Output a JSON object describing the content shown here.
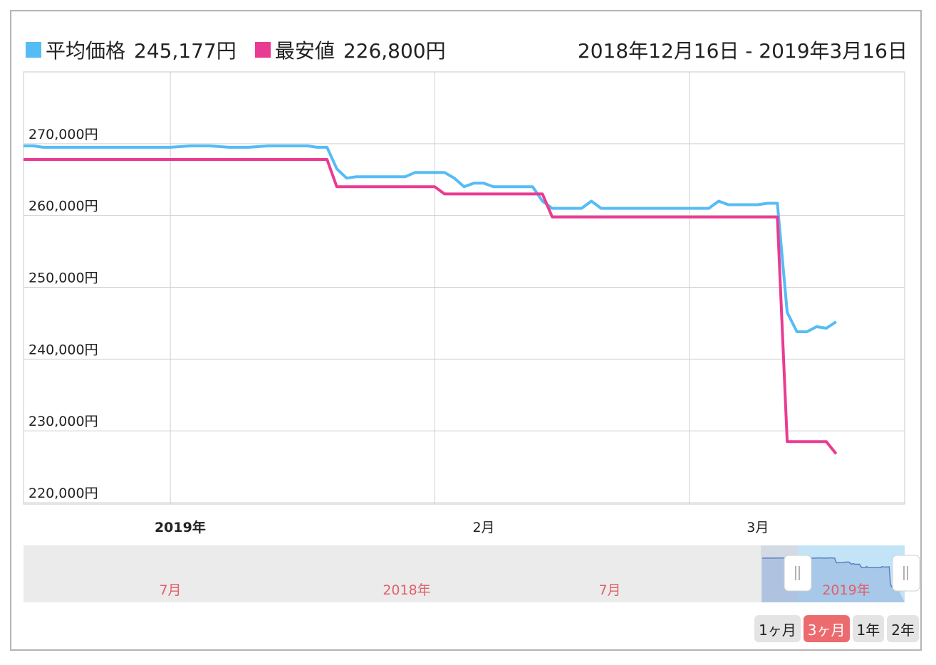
{
  "legend": {
    "avg": {
      "label": "平均価格",
      "value": "245,177円",
      "color": "#56bcf5"
    },
    "min": {
      "label": "最安値",
      "value": "226,800円",
      "color": "#ea3b92"
    }
  },
  "date_range": "2018年12月16日 - 2019年3月16日",
  "chart_data": {
    "type": "line",
    "y_tick_labels": [
      "270,000円",
      "260,000円",
      "250,000円",
      "240,000円",
      "230,000円",
      "220,000円"
    ],
    "y_ticks": [
      270000,
      260000,
      250000,
      240000,
      230000,
      220000
    ],
    "ylim": [
      219800,
      280000
    ],
    "xlim": [
      "2018-12-16",
      "2019-03-16"
    ],
    "x_ticks": [
      {
        "label": "2019年",
        "date": "2019-01-01",
        "bold": true
      },
      {
        "label": "2月",
        "date": "2019-02-01",
        "bold": false
      },
      {
        "label": "3月",
        "date": "2019-03-01",
        "bold": false
      }
    ],
    "x_gridlines": [
      "2018-12-31",
      "2019-01-27",
      "2019-02-22"
    ],
    "series": [
      {
        "name": "平均価格",
        "color": "#56bcf5",
        "points": [
          [
            "2018-12-16",
            269700
          ],
          [
            "2018-12-17",
            269700
          ],
          [
            "2018-12-18",
            269500
          ],
          [
            "2018-12-22",
            269500
          ],
          [
            "2018-12-26",
            269500
          ],
          [
            "2018-12-29",
            269500
          ],
          [
            "2018-12-31",
            269500
          ],
          [
            "2019-01-02",
            269700
          ],
          [
            "2019-01-04",
            269700
          ],
          [
            "2019-01-06",
            269500
          ],
          [
            "2019-01-08",
            269500
          ],
          [
            "2019-01-10",
            269700
          ],
          [
            "2019-01-13",
            269700
          ],
          [
            "2019-01-14",
            269700
          ],
          [
            "2019-01-15",
            269500
          ],
          [
            "2019-01-16",
            269500
          ],
          [
            "2019-01-17",
            266500
          ],
          [
            "2019-01-18",
            265200
          ],
          [
            "2019-01-19",
            265400
          ],
          [
            "2019-01-24",
            265400
          ],
          [
            "2019-01-25",
            266000
          ],
          [
            "2019-01-28",
            266000
          ],
          [
            "2019-01-29",
            265200
          ],
          [
            "2019-01-30",
            264000
          ],
          [
            "2019-01-31",
            264500
          ],
          [
            "2019-02-01",
            264500
          ],
          [
            "2019-02-02",
            264000
          ],
          [
            "2019-02-06",
            264000
          ],
          [
            "2019-02-07",
            262000
          ],
          [
            "2019-02-08",
            261000
          ],
          [
            "2019-02-11",
            261000
          ],
          [
            "2019-02-12",
            262000
          ],
          [
            "2019-02-13",
            261000
          ],
          [
            "2019-02-22",
            261000
          ],
          [
            "2019-02-24",
            261000
          ],
          [
            "2019-02-25",
            262000
          ],
          [
            "2019-02-26",
            261500
          ],
          [
            "2019-02-28",
            261500
          ],
          [
            "2019-03-01",
            261500
          ],
          [
            "2019-03-02",
            261700
          ],
          [
            "2019-03-03",
            261700
          ],
          [
            "2019-03-04",
            246500
          ],
          [
            "2019-03-05",
            243800
          ],
          [
            "2019-03-06",
            243800
          ],
          [
            "2019-03-07",
            244500
          ],
          [
            "2019-03-08",
            244300
          ],
          [
            "2019-03-09",
            245200
          ]
        ]
      },
      {
        "name": "最安値",
        "color": "#ea3b92",
        "points": [
          [
            "2018-12-16",
            267800
          ],
          [
            "2019-01-16",
            267800
          ],
          [
            "2019-01-17",
            264000
          ],
          [
            "2019-01-27",
            264000
          ],
          [
            "2019-01-28",
            263000
          ],
          [
            "2019-02-07",
            263000
          ],
          [
            "2019-02-08",
            259800
          ],
          [
            "2019-03-03",
            259800
          ],
          [
            "2019-03-04",
            228500
          ],
          [
            "2019-03-08",
            228500
          ],
          [
            "2019-03-09",
            226800
          ]
        ]
      }
    ]
  },
  "navigator": {
    "labels": [
      {
        "label": "7月",
        "x": 239
      },
      {
        "label": "2018年",
        "x": 571
      },
      {
        "label": "7月",
        "x": 856
      },
      {
        "label": "2019年",
        "x": 1188
      }
    ]
  },
  "range_buttons": [
    {
      "label": "1ヶ月",
      "active": false
    },
    {
      "label": "3ヶ月",
      "active": true
    },
    {
      "label": "1年",
      "active": false
    },
    {
      "label": "2年",
      "active": false
    }
  ]
}
